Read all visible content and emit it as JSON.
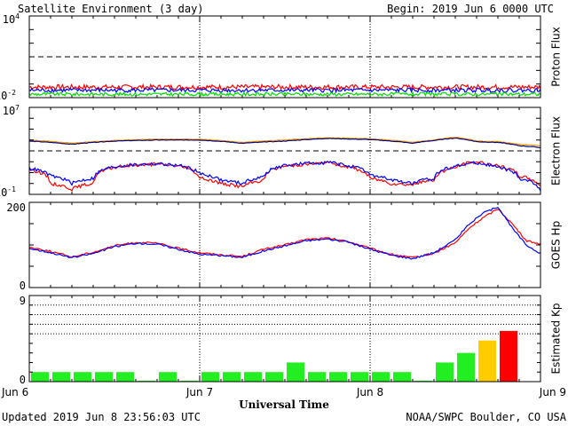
{
  "header": {
    "title": "Satellite Environment (3 day)",
    "begin": "Begin:  2019 Jun 6 0000 UTC"
  },
  "footer": {
    "updated": "Updated 2019 Jun  8 23:56:03 UTC",
    "credit": "NOAA/SWPC Boulder, CO USA"
  },
  "colors": {
    "red": "#ff0000",
    "blue": "#0000ff",
    "green": "#00dd00",
    "orange": "#ff9900",
    "navy": "#000080",
    "kp_green": "#22ee22",
    "kp_yellow": "#ffcc00",
    "kp_red": "#ff0000"
  },
  "chart_data": [
    {
      "type": "line",
      "ylabel": "Proton Flux",
      "y_scale": "log",
      "ylim": [
        0.01,
        10000
      ],
      "y_ticks": [
        {
          "exp": "4"
        },
        {
          "exp": "-2"
        }
      ],
      "threshold": 10,
      "series": [
        {
          "color_key": "red",
          "level": 0.06,
          "noise": 0.35
        },
        {
          "color_key": "blue",
          "level": 0.035,
          "noise": 0.3
        },
        {
          "color_key": "green",
          "level": 0.018,
          "noise": 0.25
        }
      ]
    },
    {
      "type": "line",
      "ylabel": "Electron Flux",
      "y_scale": "log",
      "ylim": [
        0.1,
        10000000
      ],
      "y_ticks": [
        {
          "exp": "7"
        },
        {
          "exp": "-1"
        }
      ],
      "threshold": 1000,
      "series": [
        {
          "color_key": "orange",
          "x": [
            0,
            6,
            12,
            18,
            24,
            30,
            36,
            42,
            48,
            54,
            57,
            60,
            63,
            66,
            69,
            72
          ],
          "y": [
            10000,
            5000,
            9000,
            12000,
            12000,
            6000,
            10000,
            16000,
            13000,
            6000,
            10000,
            18000,
            8000,
            7000,
            4000,
            3000
          ]
        },
        {
          "color_key": "navy",
          "x": [
            0,
            6,
            12,
            18,
            24,
            30,
            36,
            42,
            48,
            54,
            57,
            60,
            63,
            66,
            69,
            72
          ],
          "y": [
            8000,
            4000,
            8000,
            10000,
            10000,
            5000,
            8000,
            14000,
            11000,
            5000,
            9000,
            15000,
            7000,
            6000,
            3000,
            2000
          ]
        },
        {
          "color_key": "red",
          "x": [
            0,
            3,
            6,
            9,
            12,
            15,
            18,
            21,
            24,
            27,
            30,
            33,
            36,
            39,
            42,
            45,
            48,
            51,
            54,
            57,
            60,
            63,
            66,
            69,
            72
          ],
          "y": [
            20,
            1,
            0.3,
            1,
            30,
            50,
            60,
            40,
            3,
            1,
            0.5,
            2,
            40,
            60,
            80,
            30,
            3,
            1,
            0.8,
            2,
            30,
            100,
            40,
            5,
            0.5
          ]
        },
        {
          "color_key": "blue",
          "x": [
            0,
            3,
            6,
            9,
            12,
            15,
            18,
            21,
            24,
            27,
            30,
            33,
            36,
            39,
            42,
            45,
            48,
            51,
            54,
            57,
            60,
            63,
            66,
            69,
            72
          ],
          "y": [
            25,
            5,
            1,
            3,
            35,
            55,
            65,
            45,
            8,
            2,
            1,
            4,
            45,
            70,
            90,
            40,
            6,
            2,
            1,
            3,
            40,
            80,
            30,
            3,
            0.2
          ]
        }
      ]
    },
    {
      "type": "line",
      "ylabel": "GOES Hp",
      "ylim": [
        0,
        200
      ],
      "y_ticks": [
        "200",
        "0"
      ],
      "series": [
        {
          "color_key": "red",
          "x": [
            0,
            3,
            6,
            9,
            12,
            15,
            18,
            21,
            24,
            27,
            30,
            33,
            36,
            39,
            42,
            45,
            48,
            51,
            54,
            57,
            60,
            62,
            64,
            66,
            68,
            70,
            72
          ],
          "y": [
            95,
            85,
            72,
            83,
            98,
            106,
            104,
            92,
            82,
            77,
            73,
            90,
            100,
            113,
            116,
            108,
            92,
            78,
            70,
            80,
            105,
            140,
            165,
            185,
            150,
            110,
            102
          ]
        },
        {
          "color_key": "blue",
          "x": [
            0,
            3,
            6,
            9,
            12,
            15,
            18,
            21,
            24,
            27,
            30,
            33,
            36,
            39,
            42,
            45,
            48,
            51,
            54,
            57,
            60,
            62,
            64,
            66,
            68,
            70,
            72
          ],
          "y": [
            92,
            82,
            70,
            80,
            96,
            104,
            102,
            90,
            78,
            75,
            71,
            86,
            98,
            110,
            114,
            106,
            90,
            76,
            68,
            82,
            112,
            150,
            175,
            190,
            140,
            100,
            80
          ]
        }
      ]
    },
    {
      "type": "bar",
      "ylabel": "Estimated Kp",
      "ylim": [
        0,
        9
      ],
      "y_ticks": [
        "9",
        "0"
      ],
      "categories": [
        "1",
        "2",
        "3",
        "4",
        "5",
        "6",
        "7",
        "8",
        "9",
        "10",
        "11",
        "12",
        "13",
        "14",
        "15",
        "16",
        "17",
        "18",
        "19",
        "20",
        "21",
        "22",
        "23",
        "24"
      ],
      "values": [
        1,
        1,
        1,
        1,
        1,
        0.1,
        1,
        0.1,
        1,
        1,
        1,
        1,
        2,
        1,
        1,
        1,
        1,
        1,
        0.1,
        2,
        3,
        4.3,
        5.3,
        0
      ],
      "bar_color_keys": [
        "kp_green",
        "kp_green",
        "kp_green",
        "kp_green",
        "kp_green",
        "kp_green",
        "kp_green",
        "kp_green",
        "kp_green",
        "kp_green",
        "kp_green",
        "kp_green",
        "kp_green",
        "kp_green",
        "kp_green",
        "kp_green",
        "kp_green",
        "kp_green",
        "kp_green",
        "kp_green",
        "kp_green",
        "kp_yellow",
        "kp_red",
        "kp_green"
      ]
    }
  ],
  "x_axis": {
    "xlabel": "Universal Time",
    "ticks": [
      "Jun 6",
      "Jun 7",
      "Jun 8",
      "Jun 9"
    ],
    "hours_total": 72
  }
}
